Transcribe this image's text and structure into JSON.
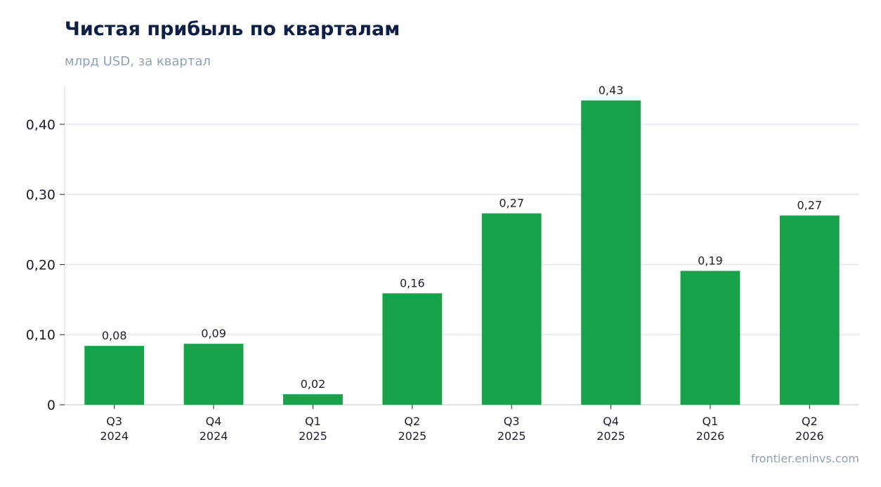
{
  "chart_data": {
    "type": "bar",
    "title": "Чистая прибыль по кварталам",
    "subtitle": "млрд USD, за квартал",
    "categories": [
      [
        "Q3",
        "2024"
      ],
      [
        "Q4",
        "2024"
      ],
      [
        "Q1",
        "2025"
      ],
      [
        "Q2",
        "2025"
      ],
      [
        "Q3",
        "2025"
      ],
      [
        "Q4",
        "2025"
      ],
      [
        "Q1",
        "2026"
      ],
      [
        "Q2",
        "2026"
      ]
    ],
    "values": [
      0.084,
      0.087,
      0.015,
      0.159,
      0.273,
      0.434,
      0.191,
      0.27
    ],
    "data_labels": [
      "0,08",
      "0,09",
      "0,02",
      "0,16",
      "0,27",
      "0,43",
      "0,19",
      "0,27"
    ],
    "yticks": [
      0,
      0.1,
      0.2,
      0.3,
      0.4
    ],
    "ytick_labels": [
      "0",
      "0,10",
      "0,20",
      "0,30",
      "0,40"
    ],
    "ylim": [
      0,
      0.455
    ],
    "grid": true,
    "bar_color": "#18a34a",
    "source": "frontier.eninvs.com"
  }
}
